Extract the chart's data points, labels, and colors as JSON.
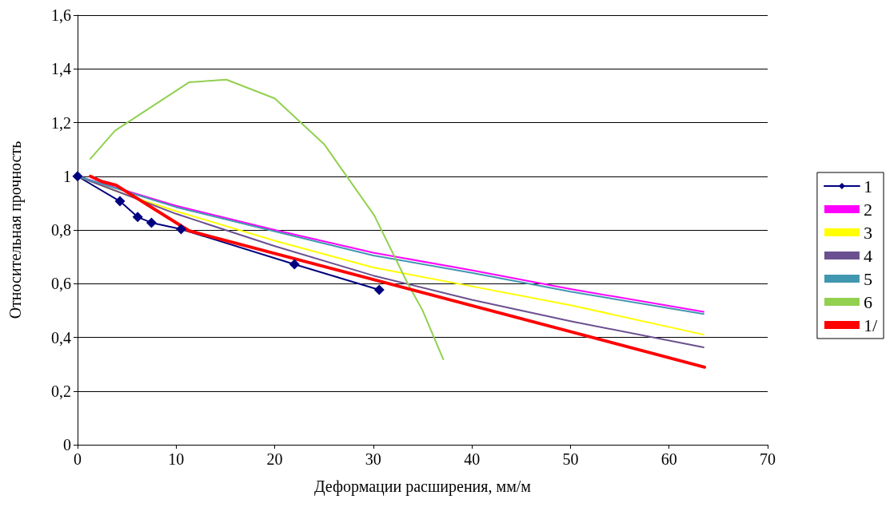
{
  "chart_data": {
    "type": "line",
    "xlabel": "Деформации расширения, мм/м",
    "ylabel": "Относительная прочность",
    "xlim": [
      0,
      70
    ],
    "xticks": [
      0,
      10,
      20,
      30,
      40,
      50,
      60,
      70
    ],
    "ylim": [
      0,
      1.6
    ],
    "yticks": [
      0,
      {
        "value": 0.2,
        "label": "0,2"
      },
      {
        "value": 0.4,
        "label": "0,4"
      },
      {
        "value": 0.6,
        "label": "0,6"
      },
      {
        "value": 0.8,
        "label": "0,8"
      },
      1,
      {
        "value": 1.2,
        "label": "1,2"
      },
      {
        "value": 1.4,
        "label": "1,4"
      },
      {
        "value": 1.6,
        "label": "1,6"
      }
    ],
    "grid": "y",
    "legend": "right",
    "marker": "none",
    "line_style": "solid",
    "series": [
      {
        "name": "1",
        "color": "#000080",
        "marker": "diamond",
        "x": [
          0,
          4.3,
          6.1,
          7.5,
          10.5,
          22,
          30.6
        ],
        "values": [
          1,
          0.907,
          0.848,
          0.827,
          0.803,
          0.672,
          0.577
        ]
      },
      {
        "name": "2",
        "color": "#ff00ff",
        "x": [
          0,
          5,
          10,
          20,
          30,
          40,
          50,
          63.5
        ],
        "values": [
          1,
          0.945,
          0.89,
          0.8,
          0.715,
          0.65,
          0.58,
          0.495
        ]
      },
      {
        "name": "3",
        "color": "#ffff00",
        "x": [
          0,
          5,
          10,
          20,
          30,
          40,
          50,
          63.5
        ],
        "values": [
          1,
          0.93,
          0.87,
          0.76,
          0.66,
          0.59,
          0.52,
          0.41
        ]
      },
      {
        "name": "4",
        "color": "#6b5090",
        "x": [
          0,
          10,
          20,
          30,
          40,
          50,
          63.5
        ],
        "values": [
          1,
          0.86,
          0.74,
          0.63,
          0.54,
          0.46,
          0.363
        ]
      },
      {
        "name": "5",
        "color": "#4197b0",
        "x": [
          0,
          10,
          20,
          30,
          40,
          50,
          63.5
        ],
        "values": [
          1,
          0.885,
          0.795,
          0.705,
          0.64,
          0.57,
          0.487
        ]
      },
      {
        "name": "6",
        "color": "#92d050",
        "x": [
          1.3,
          3.8,
          11.3,
          15.1,
          20,
          25,
          30.1,
          33.5,
          35,
          37.1
        ],
        "values": [
          1.065,
          1.17,
          1.35,
          1.36,
          1.29,
          1.12,
          0.854,
          0.6,
          0.5,
          0.318
        ]
      },
      {
        "name": "1/",
        "color": "#ff0000",
        "x": [
          1.3,
          2.5,
          3.9,
          11.3,
          63.6
        ],
        "values": [
          1.0,
          0.98,
          0.967,
          0.797,
          0.289
        ]
      }
    ]
  }
}
